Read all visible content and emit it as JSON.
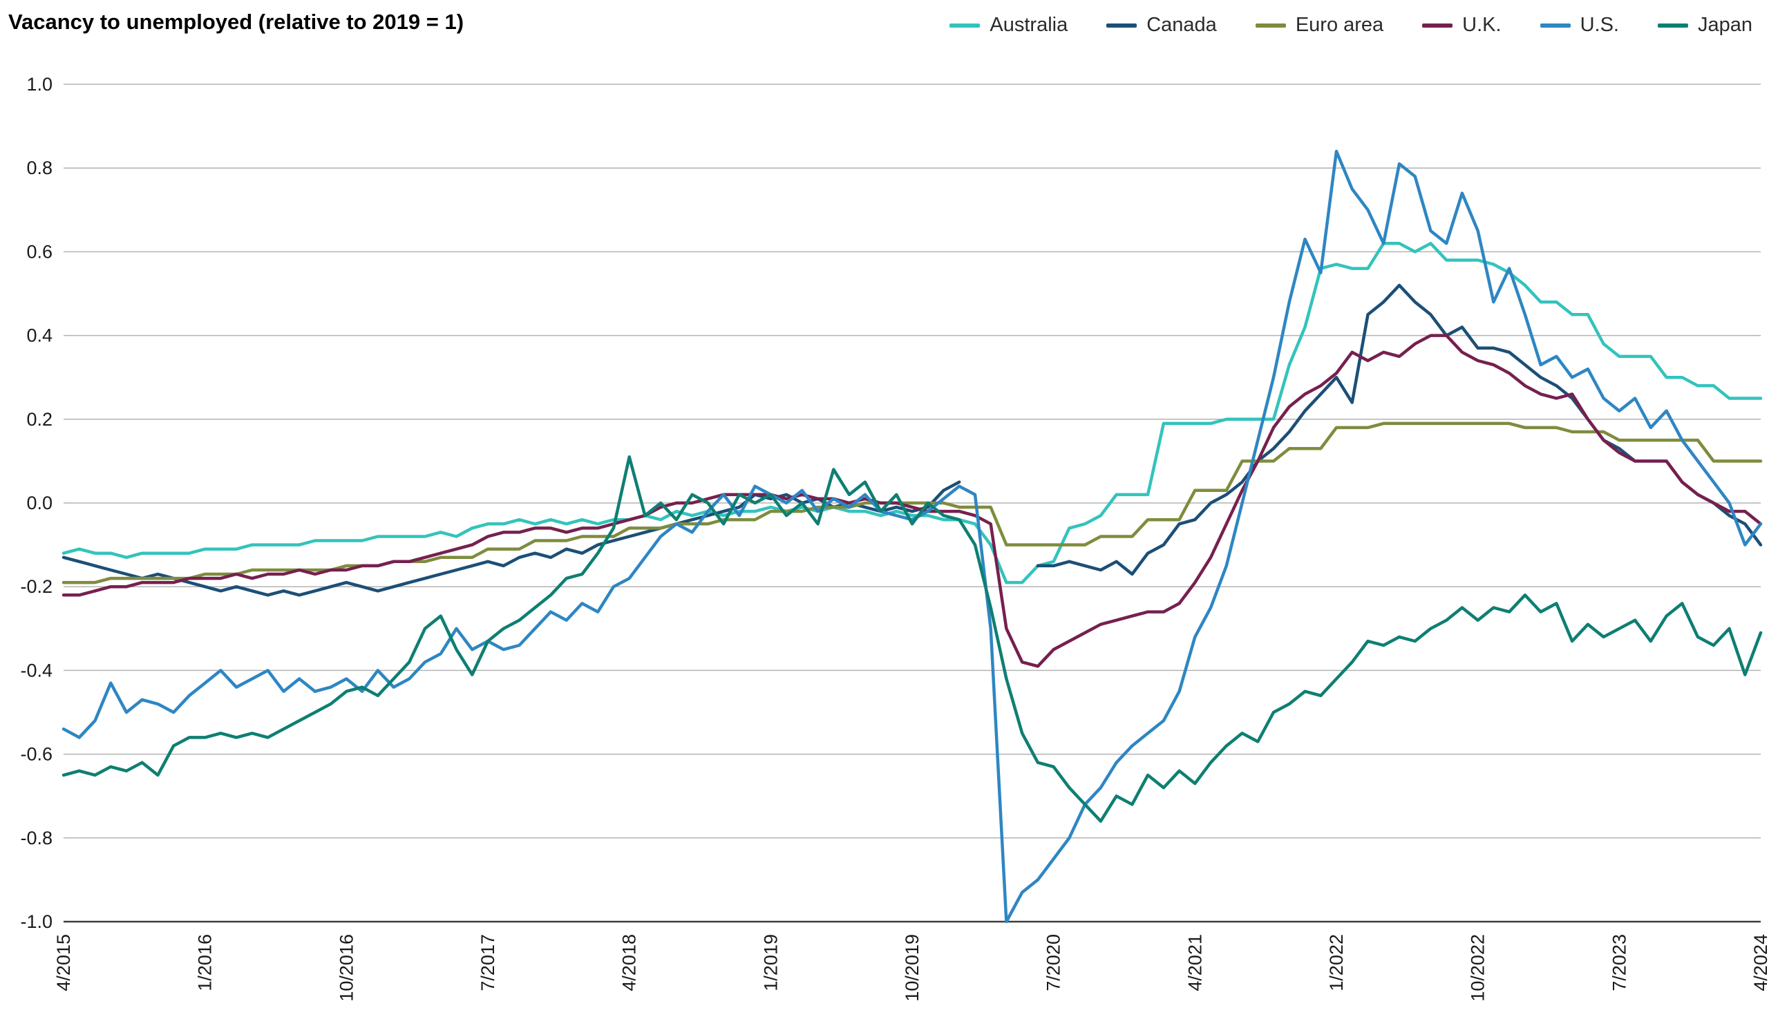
{
  "chart_data": {
    "type": "line",
    "title": "Vacancy to unemployed (relative to 2019 = 1)",
    "x_frequency": "monthly",
    "x_range": [
      "4/2015",
      "4/2024"
    ],
    "x_count": 109,
    "ylim": [
      -1.0,
      1.0
    ],
    "grid": "horizontal",
    "legend_position": "top-right",
    "axis_color": "#1a1a1a",
    "gridline_color": "#b3b3b3",
    "baseline_color": "#3d3d3d",
    "y_ticks": [
      "1.0",
      "0.8",
      "0.6",
      "0.4",
      "0.2",
      "0.0",
      "-0.2",
      "-0.4",
      "-0.6",
      "-0.8",
      "-1.0"
    ],
    "x_ticks": [
      {
        "index": 0,
        "label": "4/2015"
      },
      {
        "index": 9,
        "label": "1/2016"
      },
      {
        "index": 18,
        "label": "10/2016"
      },
      {
        "index": 27,
        "label": "7/2017"
      },
      {
        "index": 36,
        "label": "4/2018"
      },
      {
        "index": 45,
        "label": "1/2019"
      },
      {
        "index": 54,
        "label": "10/2019"
      },
      {
        "index": 63,
        "label": "7/2020"
      },
      {
        "index": 72,
        "label": "4/2021"
      },
      {
        "index": 81,
        "label": "1/2022"
      },
      {
        "index": 90,
        "label": "10/2022"
      },
      {
        "index": 99,
        "label": "7/2023"
      },
      {
        "index": 108,
        "label": "4/2024"
      }
    ],
    "series": [
      {
        "name": "Australia",
        "color": "#33c3bd",
        "values": [
          -0.12,
          -0.11,
          -0.12,
          -0.12,
          -0.13,
          -0.12,
          -0.12,
          -0.12,
          -0.12,
          -0.11,
          -0.11,
          -0.11,
          -0.1,
          -0.1,
          -0.1,
          -0.1,
          -0.09,
          -0.09,
          -0.09,
          -0.09,
          -0.08,
          -0.08,
          -0.08,
          -0.08,
          -0.07,
          -0.08,
          -0.06,
          -0.05,
          -0.05,
          -0.04,
          -0.05,
          -0.04,
          -0.05,
          -0.04,
          -0.05,
          -0.04,
          -0.04,
          -0.03,
          -0.04,
          -0.02,
          -0.03,
          -0.02,
          -0.03,
          -0.02,
          -0.02,
          -0.01,
          -0.02,
          -0.01,
          -0.02,
          -0.01,
          -0.02,
          -0.02,
          -0.03,
          -0.02,
          -0.03,
          -0.03,
          -0.04,
          -0.04,
          -0.05,
          -0.1,
          -0.19,
          -0.19,
          -0.15,
          -0.14,
          -0.06,
          -0.05,
          -0.03,
          0.02,
          0.02,
          0.02,
          0.19,
          0.19,
          0.19,
          0.19,
          0.2,
          0.2,
          0.2,
          0.2,
          0.33,
          0.42,
          0.56,
          0.57,
          0.56,
          0.56,
          0.62,
          0.62,
          0.6,
          0.62,
          0.58,
          0.58,
          0.58,
          0.57,
          0.55,
          0.52,
          0.48,
          0.48,
          0.45,
          0.45,
          0.38,
          0.35,
          0.35,
          0.35,
          0.3,
          0.3,
          0.28,
          0.28,
          0.25,
          0.25,
          0.25
        ]
      },
      {
        "name": "Canada",
        "color": "#1c4f76",
        "values": [
          -0.13,
          -0.14,
          -0.15,
          -0.16,
          -0.17,
          -0.18,
          -0.17,
          -0.18,
          -0.19,
          -0.2,
          -0.21,
          -0.2,
          -0.21,
          -0.22,
          -0.21,
          -0.22,
          -0.21,
          -0.2,
          -0.19,
          -0.2,
          -0.21,
          -0.2,
          -0.19,
          -0.18,
          -0.17,
          -0.16,
          -0.15,
          -0.14,
          -0.15,
          -0.13,
          -0.12,
          -0.13,
          -0.11,
          -0.12,
          -0.1,
          -0.09,
          -0.08,
          -0.07,
          -0.06,
          -0.05,
          -0.04,
          -0.03,
          -0.02,
          -0.01,
          0.02,
          0.01,
          0.02,
          0.0,
          0.01,
          -0.01,
          0.0,
          -0.01,
          -0.02,
          -0.01,
          -0.02,
          -0.01,
          0.03,
          0.05,
          null,
          null,
          null,
          null,
          -0.15,
          -0.15,
          -0.14,
          -0.15,
          -0.16,
          -0.14,
          -0.17,
          -0.12,
          -0.1,
          -0.05,
          -0.04,
          0.0,
          0.02,
          0.05,
          0.1,
          0.13,
          0.17,
          0.22,
          0.26,
          0.3,
          0.24,
          0.45,
          0.48,
          0.52,
          0.48,
          0.45,
          0.4,
          0.42,
          0.37,
          0.37,
          0.36,
          0.33,
          0.3,
          0.28,
          0.25,
          0.2,
          0.15,
          0.13,
          0.1,
          0.1,
          0.1,
          0.05,
          0.02,
          0.0,
          -0.03,
          -0.05,
          -0.1
        ]
      },
      {
        "name": "Euro area",
        "color": "#7e8c3e",
        "values": [
          -0.19,
          -0.19,
          -0.19,
          -0.18,
          -0.18,
          -0.18,
          -0.18,
          -0.18,
          -0.18,
          -0.17,
          -0.17,
          -0.17,
          -0.16,
          -0.16,
          -0.16,
          -0.16,
          -0.16,
          -0.16,
          -0.15,
          -0.15,
          -0.15,
          -0.14,
          -0.14,
          -0.14,
          -0.13,
          -0.13,
          -0.13,
          -0.11,
          -0.11,
          -0.11,
          -0.09,
          -0.09,
          -0.09,
          -0.08,
          -0.08,
          -0.08,
          -0.06,
          -0.06,
          -0.06,
          -0.05,
          -0.05,
          -0.05,
          -0.04,
          -0.04,
          -0.04,
          -0.02,
          -0.02,
          -0.02,
          -0.01,
          -0.01,
          -0.01,
          0.0,
          0.0,
          0.0,
          0.0,
          0.0,
          0.0,
          -0.01,
          -0.01,
          -0.01,
          -0.1,
          -0.1,
          -0.1,
          -0.1,
          -0.1,
          -0.1,
          -0.08,
          -0.08,
          -0.08,
          -0.04,
          -0.04,
          -0.04,
          0.03,
          0.03,
          0.03,
          0.1,
          0.1,
          0.1,
          0.13,
          0.13,
          0.13,
          0.18,
          0.18,
          0.18,
          0.19,
          0.19,
          0.19,
          0.19,
          0.19,
          0.19,
          0.19,
          0.19,
          0.19,
          0.18,
          0.18,
          0.18,
          0.17,
          0.17,
          0.17,
          0.15,
          0.15,
          0.15,
          0.15,
          0.15,
          0.15,
          0.1,
          0.1,
          0.1,
          0.1
        ]
      },
      {
        "name": "U.K.",
        "color": "#76204f",
        "values": [
          -0.22,
          -0.22,
          -0.21,
          -0.2,
          -0.2,
          -0.19,
          -0.19,
          -0.19,
          -0.18,
          -0.18,
          -0.18,
          -0.17,
          -0.18,
          -0.17,
          -0.17,
          -0.16,
          -0.17,
          -0.16,
          -0.16,
          -0.15,
          -0.15,
          -0.14,
          -0.14,
          -0.13,
          -0.12,
          -0.11,
          -0.1,
          -0.08,
          -0.07,
          -0.07,
          -0.06,
          -0.06,
          -0.07,
          -0.06,
          -0.06,
          -0.05,
          -0.04,
          -0.03,
          -0.01,
          0.0,
          0.0,
          0.01,
          0.02,
          0.02,
          0.02,
          0.02,
          0.01,
          0.02,
          0.01,
          0.01,
          0.0,
          0.01,
          0.0,
          0.0,
          -0.01,
          -0.02,
          -0.02,
          -0.02,
          -0.03,
          -0.05,
          -0.3,
          -0.38,
          -0.39,
          -0.35,
          -0.33,
          -0.31,
          -0.29,
          -0.28,
          -0.27,
          -0.26,
          -0.26,
          -0.24,
          -0.19,
          -0.13,
          -0.05,
          0.03,
          0.1,
          0.18,
          0.23,
          0.26,
          0.28,
          0.31,
          0.36,
          0.34,
          0.36,
          0.35,
          0.38,
          0.4,
          0.4,
          0.36,
          0.34,
          0.33,
          0.31,
          0.28,
          0.26,
          0.25,
          0.26,
          0.2,
          0.15,
          0.12,
          0.1,
          0.1,
          0.1,
          0.05,
          0.02,
          0.0,
          -0.02,
          -0.02,
          -0.05
        ]
      },
      {
        "name": "U.S.",
        "color": "#2e86c3",
        "values": [
          -0.54,
          -0.56,
          -0.52,
          -0.43,
          -0.5,
          -0.47,
          -0.48,
          -0.5,
          -0.46,
          -0.43,
          -0.4,
          -0.44,
          -0.42,
          -0.4,
          -0.45,
          -0.42,
          -0.45,
          -0.44,
          -0.42,
          -0.45,
          -0.4,
          -0.44,
          -0.42,
          -0.38,
          -0.36,
          -0.3,
          -0.35,
          -0.33,
          -0.35,
          -0.34,
          -0.3,
          -0.26,
          -0.28,
          -0.24,
          -0.26,
          -0.2,
          -0.18,
          -0.13,
          -0.08,
          -0.05,
          -0.07,
          -0.02,
          0.02,
          -0.03,
          0.04,
          0.02,
          0.0,
          0.03,
          -0.02,
          0.01,
          -0.01,
          0.02,
          -0.02,
          -0.03,
          -0.04,
          -0.02,
          0.01,
          0.04,
          0.02,
          -0.3,
          -1.0,
          -0.93,
          -0.9,
          -0.85,
          -0.8,
          -0.72,
          -0.68,
          -0.62,
          -0.58,
          -0.55,
          -0.52,
          -0.45,
          -0.32,
          -0.25,
          -0.15,
          0.0,
          0.15,
          0.3,
          0.48,
          0.63,
          0.55,
          0.84,
          0.75,
          0.7,
          0.62,
          0.81,
          0.78,
          0.65,
          0.62,
          0.74,
          0.65,
          0.48,
          0.56,
          0.45,
          0.33,
          0.35,
          0.3,
          0.32,
          0.25,
          0.22,
          0.25,
          0.18,
          0.22,
          0.15,
          0.1,
          0.05,
          0.0,
          -0.1,
          -0.05
        ]
      },
      {
        "name": "Japan",
        "color": "#0e7f72",
        "values": [
          -0.65,
          -0.64,
          -0.65,
          -0.63,
          -0.64,
          -0.62,
          -0.65,
          -0.58,
          -0.56,
          -0.56,
          -0.55,
          -0.56,
          -0.55,
          -0.56,
          -0.54,
          -0.52,
          -0.5,
          -0.48,
          -0.45,
          -0.44,
          -0.46,
          -0.42,
          -0.38,
          -0.3,
          -0.27,
          -0.35,
          -0.41,
          -0.33,
          -0.3,
          -0.28,
          -0.25,
          -0.22,
          -0.18,
          -0.17,
          -0.12,
          -0.06,
          0.11,
          -0.03,
          0.0,
          -0.04,
          0.02,
          0.0,
          -0.05,
          0.02,
          0.0,
          0.02,
          -0.03,
          0.0,
          -0.05,
          0.08,
          0.02,
          0.05,
          -0.02,
          0.02,
          -0.05,
          0.0,
          -0.03,
          -0.04,
          -0.1,
          -0.25,
          -0.42,
          -0.55,
          -0.62,
          -0.63,
          -0.68,
          -0.72,
          -0.76,
          -0.7,
          -0.72,
          -0.65,
          -0.68,
          -0.64,
          -0.67,
          -0.62,
          -0.58,
          -0.55,
          -0.57,
          -0.5,
          -0.48,
          -0.45,
          -0.46,
          -0.42,
          -0.38,
          -0.33,
          -0.34,
          -0.32,
          -0.33,
          -0.3,
          -0.28,
          -0.25,
          -0.28,
          -0.25,
          -0.26,
          -0.22,
          -0.26,
          -0.24,
          -0.33,
          -0.29,
          -0.32,
          -0.3,
          -0.28,
          -0.33,
          -0.27,
          -0.24,
          -0.32,
          -0.34,
          -0.3,
          -0.41,
          -0.31
        ]
      }
    ]
  }
}
